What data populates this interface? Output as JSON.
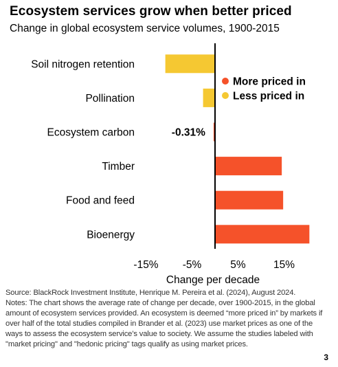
{
  "title": "Ecosystem services grow when better priced",
  "subtitle": "Change in global ecosystem service volumes, 1900-2015",
  "chart_data": {
    "type": "bar",
    "orientation": "horizontal",
    "xlabel": "Change per decade",
    "xlim": [
      -20,
      22
    ],
    "xticks": [
      -15,
      -5,
      5,
      15
    ],
    "xtick_labels": [
      "-15%",
      "-5%",
      "5%",
      "15%"
    ],
    "categories": [
      "Soil nitrogen retention",
      "Pollination",
      "Ecosystem carbon",
      "Timber",
      "Food and feed",
      "Bioenergy"
    ],
    "values": [
      -10.8,
      -2.6,
      -0.31,
      14.5,
      14.8,
      20.5
    ],
    "groups": [
      "Less priced in",
      "Less priced in",
      "More priced in",
      "More priced in",
      "More priced in",
      "More priced in"
    ],
    "data_labels": [
      {
        "category": "Ecosystem carbon",
        "text": "-0.31%"
      }
    ],
    "legend": {
      "placement": "right",
      "items": [
        {
          "label": "More priced in",
          "color": "#f5522a"
        },
        {
          "label": "Less priced in",
          "color": "#f5c832"
        }
      ]
    },
    "grid": false
  },
  "colors": {
    "more_priced_in": "#f5522a",
    "less_priced_in": "#f5c832",
    "axis": "#000000"
  },
  "footer": {
    "source": "Source: BlackRock Investment Institute, Henrique M. Pereira et al. (2024), August 2024.",
    "notes": "Notes: The chart shows the average rate of change per decade, over 1900-2015, in the global amount of ecosystem services provided. An ecosystem is deemed “more priced in” by markets if over half of the total studies compiled in Brander et al. (2023) use market prices as one of the ways to assess the ecosystem service’s value to society. We assume the studies labeled with \"market pricing\" and \"hedonic pricing\" tags qualify as using market prices."
  },
  "page_number": "3"
}
